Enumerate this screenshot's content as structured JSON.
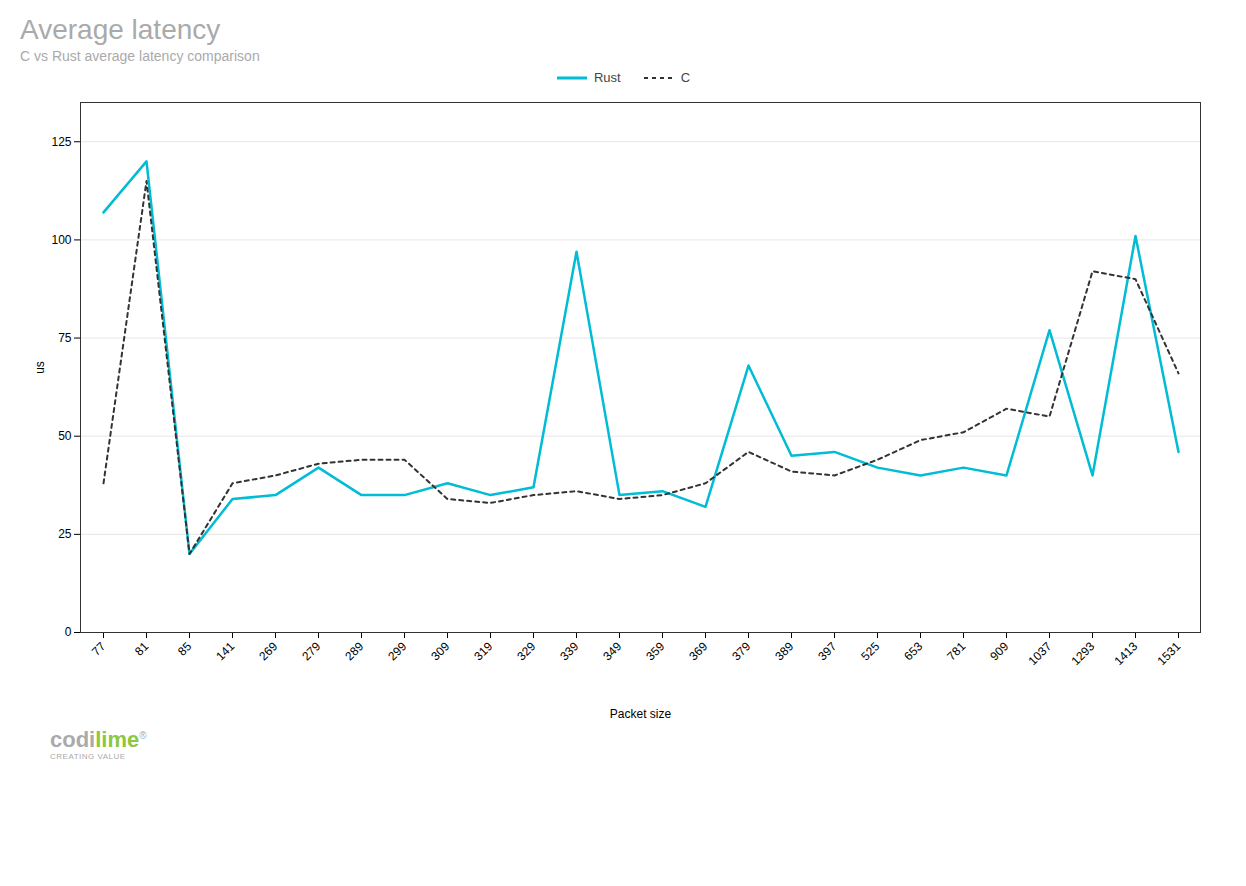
{
  "chart_data": {
    "type": "line",
    "title": "Average latency",
    "subtitle": "C vs Rust average latency comparison",
    "x_label": "Packet size",
    "y_label": "us",
    "categories": [
      "77",
      "81",
      "85",
      "141",
      "269",
      "279",
      "289",
      "299",
      "309",
      "319",
      "329",
      "339",
      "349",
      "359",
      "369",
      "379",
      "389",
      "397",
      "525",
      "653",
      "781",
      "909",
      "1037",
      "1293",
      "1413",
      "1531"
    ],
    "series": [
      {
        "name": "Rust",
        "color": "#00bcd4",
        "line_style": "solid",
        "values": [
          107,
          120,
          20,
          34,
          35,
          42,
          35,
          35,
          38,
          35,
          37,
          97,
          35,
          36,
          32,
          68,
          45,
          46,
          42,
          40,
          42,
          40,
          77,
          40,
          101,
          46
        ]
      },
      {
        "name": "C",
        "color": "#333333",
        "line_style": "dashed",
        "values": [
          38,
          115,
          20,
          38,
          40,
          43,
          44,
          44,
          34,
          33,
          35,
          36,
          34,
          35,
          38,
          46,
          41,
          40,
          44,
          49,
          51,
          57,
          55,
          92,
          90,
          66
        ]
      }
    ],
    "ylim": [
      0,
      135
    ],
    "yticks": [
      0,
      25,
      50,
      75,
      100,
      125
    ],
    "grid": true,
    "legend": "top",
    "annotations": [
      {
        "text": "codi",
        "color": "#aaaaaa"
      },
      {
        "text": "lime",
        "color": "#8dc63f"
      },
      {
        "text": "®",
        "color": "#aaaaaa"
      },
      {
        "text": "CREATING VALUE",
        "color": "#aaaaaa"
      }
    ]
  }
}
